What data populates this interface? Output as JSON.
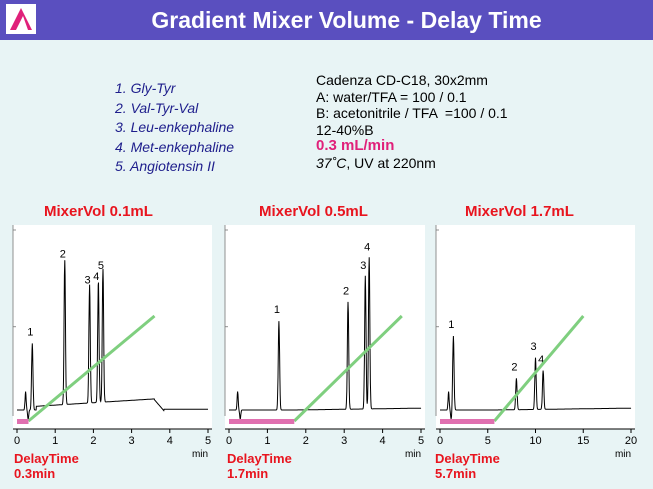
{
  "header": {
    "title": "Gradient Mixer Volume - Delay Time"
  },
  "compounds": [
    "1. Gly-Tyr",
    "2. Val-Tyr-Val",
    "3. Leu-enkephaline",
    "4. Met-enkephaline",
    "5. Angiotensin II"
  ],
  "conditions": {
    "column": "Cadenza CD-C18, 30x2mm",
    "mobile_a": "A: water/TFA = 100 / 0.1",
    "mobile_b": "B: acetonitrile / TFA  =100 / 0.1",
    "gradient": "12-40%B",
    "flow": "0.3 mL/min",
    "temperature": "37˚C",
    "detection": ", UV at 220nm"
  },
  "colors": {
    "header": "#5a4fbf",
    "gradient_line": "#7fcf7f",
    "delay_bar": "#e070b0",
    "title_red": "#e8141e",
    "flow_pink": "#e0207a"
  },
  "chart_data": [
    {
      "type": "line",
      "title": "MixerVol 0.1mL",
      "xlabel": "min",
      "xlim": [
        0,
        5
      ],
      "xticks": [
        0,
        1,
        2,
        3,
        4,
        5
      ],
      "delay_label": "DelayTime",
      "delay_value": "0.3min",
      "delay_time": 0.3,
      "gradient_end": 3.6,
      "baseline_step": [
        3.6,
        3.85
      ],
      "peaks": [
        {
          "label": "1",
          "time": 0.4,
          "height": 0.36
        },
        {
          "label": "2",
          "time": 1.25,
          "height": 0.78
        },
        {
          "label": "3",
          "time": 1.9,
          "height": 0.64
        },
        {
          "label": "4",
          "time": 2.13,
          "height": 0.66
        },
        {
          "label": "5",
          "time": 2.25,
          "height": 0.72
        }
      ]
    },
    {
      "type": "line",
      "title": "MixerVol 0.5mL",
      "xlabel": "min",
      "xlim": [
        0,
        5
      ],
      "xticks": [
        0,
        1,
        2,
        3,
        4,
        5
      ],
      "delay_label": "DelayTime",
      "delay_value": "1.7min",
      "delay_time": 1.7,
      "gradient_end": 4.5,
      "peaks": [
        {
          "label": "1",
          "time": 1.3,
          "height": 0.48
        },
        {
          "label": "2",
          "time": 3.1,
          "height": 0.58
        },
        {
          "label": "3",
          "time": 3.55,
          "height": 0.72
        },
        {
          "label": "4",
          "time": 3.65,
          "height": 0.82
        }
      ]
    },
    {
      "type": "line",
      "title": "MixerVol 1.7mL",
      "xlabel": "min",
      "xlim": [
        0,
        20
      ],
      "xticks": [
        0,
        5,
        10,
        15,
        20
      ],
      "delay_label": "DelayTime",
      "delay_value": "5.7min",
      "delay_time": 5.7,
      "gradient_end": 15,
      "peaks": [
        {
          "label": "1",
          "time": 1.4,
          "height": 0.4
        },
        {
          "label": "2",
          "time": 8.0,
          "height": 0.17
        },
        {
          "label": "3",
          "time": 10.0,
          "height": 0.28
        },
        {
          "label": "4",
          "time": 10.8,
          "height": 0.21
        }
      ]
    }
  ]
}
